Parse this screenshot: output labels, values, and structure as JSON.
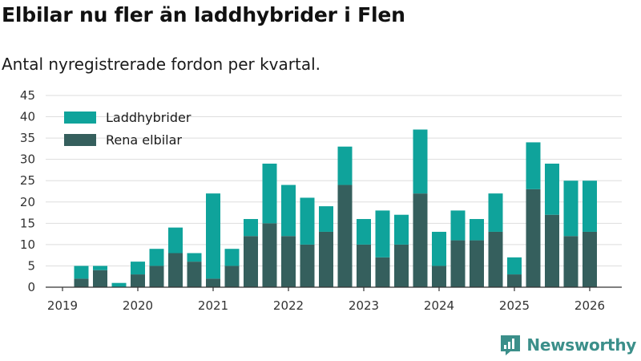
{
  "header": {
    "title": "Elbilar nu fler än laddhybrider i Flen",
    "subtitle": "Antal nyregistrerade fordon per kvartal."
  },
  "brand": {
    "name": "Newsworthy"
  },
  "colors": {
    "laddhybrider": "#0fa39b",
    "rena_elbilar": "#355f5d",
    "grid": "#dddddd",
    "axis": "#333333",
    "brand": "#3b8f8a"
  },
  "chart_data": {
    "type": "bar",
    "stacked": true,
    "title": "Elbilar nu fler än laddhybrider i Flen",
    "subtitle": "Antal nyregistrerade fordon per kvartal.",
    "xlabel": "",
    "ylabel": "",
    "ylim": [
      0,
      45
    ],
    "yticks": [
      0,
      5,
      10,
      15,
      20,
      25,
      30,
      35,
      40,
      45
    ],
    "xticks": [
      "2019",
      "2020",
      "2021",
      "2022",
      "2023",
      "2024",
      "2025",
      "2026"
    ],
    "grid": true,
    "legend_position": "top-left",
    "categories": [
      "2019 Q2",
      "2019 Q3",
      "2019 Q4",
      "2020 Q1",
      "2020 Q2",
      "2020 Q3",
      "2020 Q4",
      "2021 Q1",
      "2021 Q2",
      "2021 Q3",
      "2021 Q4",
      "2022 Q1",
      "2022 Q2",
      "2022 Q3",
      "2022 Q4",
      "2023 Q1",
      "2023 Q2",
      "2023 Q3",
      "2023 Q4",
      "2024 Q1",
      "2024 Q2",
      "2024 Q3",
      "2024 Q4",
      "2025 Q1",
      "2025 Q2",
      "2025 Q3",
      "2025 Q4",
      "2026 Q1"
    ],
    "series": [
      {
        "name": "Laddhybrider",
        "values": [
          3,
          1,
          1,
          3,
          4,
          6,
          2,
          20,
          4,
          4,
          14,
          12,
          11,
          6,
          9,
          6,
          11,
          7,
          15,
          8,
          7,
          5,
          9,
          4,
          11,
          12,
          13,
          12
        ]
      },
      {
        "name": "Rena elbilar",
        "values": [
          2,
          4,
          0,
          3,
          5,
          8,
          6,
          2,
          5,
          12,
          15,
          12,
          10,
          13,
          24,
          10,
          7,
          10,
          22,
          5,
          11,
          11,
          13,
          3,
          23,
          17,
          12,
          13
        ]
      }
    ]
  }
}
